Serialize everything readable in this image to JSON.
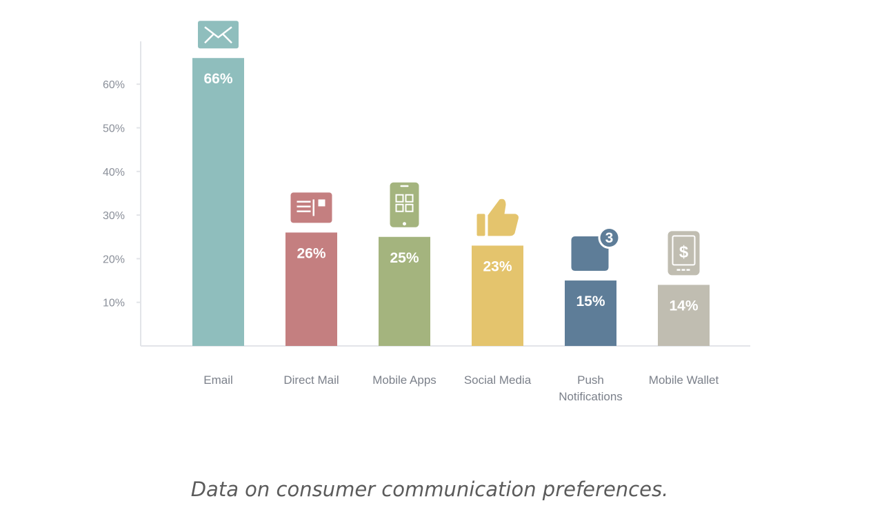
{
  "caption": "Data on consumer communication preferences.",
  "chart_data": {
    "type": "bar",
    "categories": [
      "Email",
      "Direct Mail",
      "Mobile Apps",
      "Social Media",
      "Push Notifications",
      "Mobile Wallet"
    ],
    "category_lines": [
      [
        "Email"
      ],
      [
        "Direct Mail"
      ],
      [
        "Mobile Apps"
      ],
      [
        "Social Media"
      ],
      [
        "Push",
        "Notifications"
      ],
      [
        "Mobile Wallet"
      ]
    ],
    "values": [
      66,
      26,
      25,
      23,
      15,
      14
    ],
    "value_labels": [
      "66%",
      "26%",
      "25%",
      "23%",
      "15%",
      "14%"
    ],
    "bar_colors": [
      "#8fbebd",
      "#c47f80",
      "#a4b47e",
      "#e4c46d",
      "#5e7d98",
      "#c0bdb1"
    ],
    "icons": [
      "envelope-icon",
      "newspaper-icon",
      "smartphone-apps-icon",
      "thumbs-up-icon",
      "notification-badge-icon",
      "mobile-wallet-icon"
    ],
    "notification_badge": "3",
    "y_ticks": [
      "10%",
      "20%",
      "30%",
      "40%",
      "50%",
      "60%"
    ],
    "ylim": [
      0,
      70
    ],
    "title": "",
    "xlabel": "",
    "ylabel": "",
    "grid": false,
    "legend": "none",
    "axis_color": "#e2e4e8"
  }
}
